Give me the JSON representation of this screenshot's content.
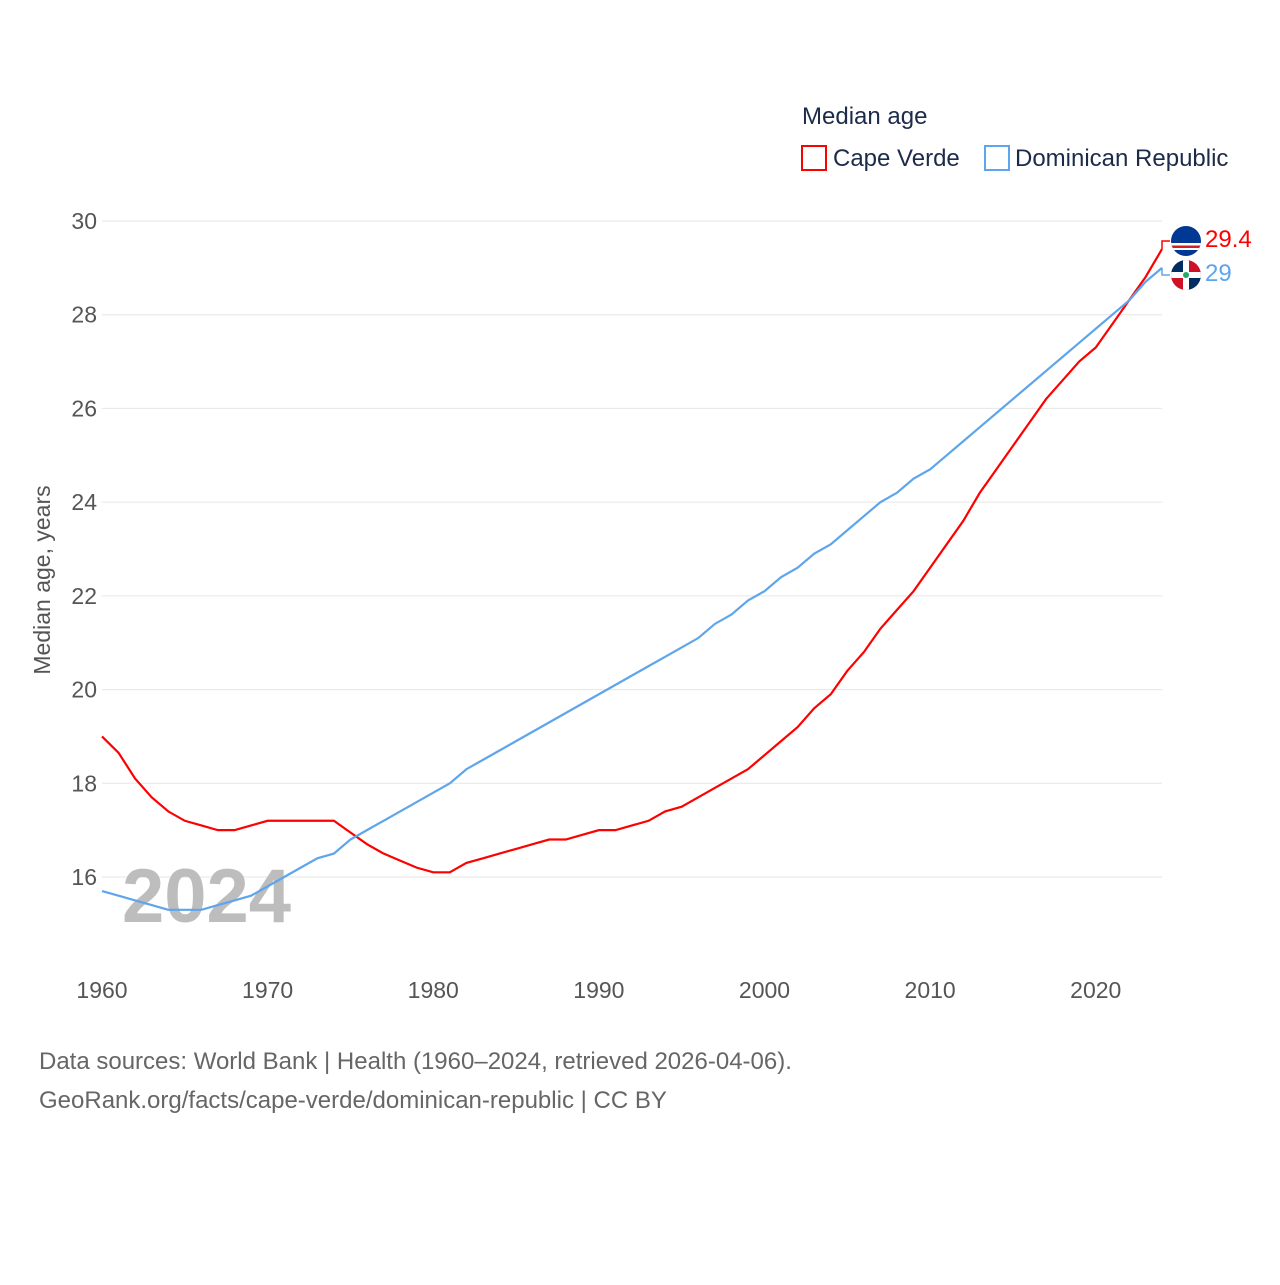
{
  "chart_data": {
    "type": "line",
    "title": "Median age",
    "ylabel": "Median age, years",
    "xlabel": "",
    "ylim": [
      14,
      30
    ],
    "xlim": [
      1960,
      2024
    ],
    "yticks": [
      16,
      18,
      20,
      22,
      24,
      26,
      28,
      30
    ],
    "xticks": [
      1960,
      1970,
      1980,
      1990,
      2000,
      2010,
      2020
    ],
    "grid": true,
    "legend_position": "top-right",
    "year_watermark": "2024",
    "x": [
      1960,
      1961,
      1962,
      1963,
      1964,
      1965,
      1966,
      1967,
      1968,
      1969,
      1970,
      1971,
      1972,
      1973,
      1974,
      1975,
      1976,
      1977,
      1978,
      1979,
      1980,
      1981,
      1982,
      1983,
      1984,
      1985,
      1986,
      1987,
      1988,
      1989,
      1990,
      1991,
      1992,
      1993,
      1994,
      1995,
      1996,
      1997,
      1998,
      1999,
      2000,
      2001,
      2002,
      2003,
      2004,
      2005,
      2006,
      2007,
      2008,
      2009,
      2010,
      2011,
      2012,
      2013,
      2014,
      2015,
      2016,
      2017,
      2018,
      2019,
      2020,
      2021,
      2022,
      2023,
      2024
    ],
    "series": [
      {
        "name": "Cape Verde",
        "color": "#ff0000",
        "end_label": "29.4",
        "values": [
          19.0,
          18.65,
          18.1,
          17.7,
          17.4,
          17.2,
          17.1,
          17.0,
          17.0,
          17.1,
          17.2,
          17.2,
          17.2,
          17.2,
          17.2,
          16.95,
          16.7,
          16.5,
          16.35,
          16.2,
          16.1,
          16.1,
          16.3,
          16.4,
          16.5,
          16.6,
          16.7,
          16.8,
          16.8,
          16.9,
          17.0,
          17.0,
          17.1,
          17.2,
          17.4,
          17.5,
          17.7,
          17.9,
          18.1,
          18.3,
          18.6,
          18.9,
          19.2,
          19.6,
          19.9,
          20.4,
          20.8,
          21.3,
          21.7,
          22.1,
          22.6,
          23.1,
          23.6,
          24.2,
          24.7,
          25.2,
          25.7,
          26.2,
          26.6,
          27.0,
          27.3,
          27.8,
          28.3,
          28.8,
          29.4
        ]
      },
      {
        "name": "Dominican Republic",
        "color": "#5ea5ec",
        "end_label": "29",
        "values": [
          15.7,
          15.6,
          15.5,
          15.4,
          15.3,
          15.3,
          15.3,
          15.4,
          15.5,
          15.6,
          15.8,
          16.0,
          16.2,
          16.4,
          16.5,
          16.8,
          17.0,
          17.2,
          17.4,
          17.6,
          17.8,
          18.0,
          18.3,
          18.5,
          18.7,
          18.9,
          19.1,
          19.3,
          19.5,
          19.7,
          19.9,
          20.1,
          20.3,
          20.5,
          20.7,
          20.9,
          21.1,
          21.4,
          21.6,
          21.9,
          22.1,
          22.4,
          22.6,
          22.9,
          23.1,
          23.4,
          23.7,
          24.0,
          24.2,
          24.5,
          24.7,
          25.0,
          25.3,
          25.6,
          25.9,
          26.2,
          26.5,
          26.8,
          27.1,
          27.4,
          27.7,
          28.0,
          28.3,
          28.7,
          29.0
        ]
      }
    ]
  },
  "footer": {
    "line1": "Data sources: World Bank | Health (1960–2024, retrieved 2026-04-06).",
    "line2": "GeoRank.org/facts/cape-verde/dominican-republic | CC BY"
  }
}
